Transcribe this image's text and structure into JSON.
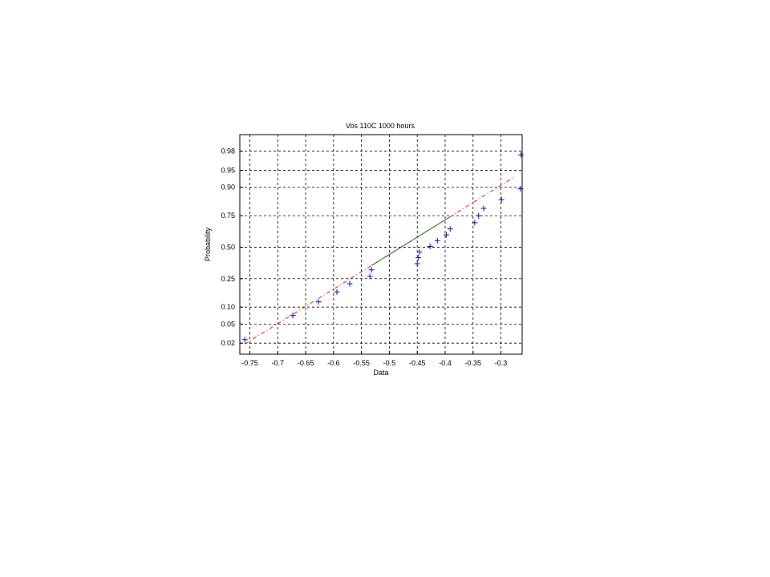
{
  "chart_data": {
    "type": "scatter",
    "title": "Vos 110C 1000 hours",
    "xlabel": "Data",
    "ylabel": "Probability",
    "xlim": [
      -0.768,
      -0.262
    ],
    "y_scale": "normal-probability",
    "ylim_prob": [
      0.011,
      0.992
    ],
    "grid": true,
    "x_ticks": [
      -0.75,
      -0.7,
      -0.65,
      -0.6,
      -0.55,
      -0.5,
      -0.45,
      -0.4,
      -0.35,
      -0.3
    ],
    "x_tick_labels": [
      "-0.75",
      "-0.7",
      "-0.65",
      "-0.6",
      "-0.55",
      "-0.5",
      "-0.45",
      "-0.4",
      "-0.35",
      "-0.3"
    ],
    "y_ticks": [
      0.02,
      0.05,
      0.1,
      0.25,
      0.5,
      0.75,
      0.9,
      0.95,
      0.98
    ],
    "y_tick_labels": [
      "0.02",
      "0.05",
      "0.10",
      "0.25",
      "0.50",
      "0.75",
      "0.90",
      "0.95",
      "0.98"
    ],
    "series": [
      {
        "points": [
          {
            "x": -0.759,
            "y": 0.024
          },
          {
            "x": -0.673,
            "y": 0.072
          },
          {
            "x": -0.627,
            "y": 0.121
          },
          {
            "x": -0.594,
            "y": 0.169
          },
          {
            "x": -0.571,
            "y": 0.217
          },
          {
            "x": -0.535,
            "y": 0.266
          },
          {
            "x": -0.532,
            "y": 0.314
          },
          {
            "x": -0.45,
            "y": 0.362
          },
          {
            "x": -0.448,
            "y": 0.411
          },
          {
            "x": -0.446,
            "y": 0.459
          },
          {
            "x": -0.427,
            "y": 0.507
          },
          {
            "x": -0.414,
            "y": 0.556
          },
          {
            "x": -0.398,
            "y": 0.604
          },
          {
            "x": -0.391,
            "y": 0.652
          },
          {
            "x": -0.347,
            "y": 0.7
          },
          {
            "x": -0.34,
            "y": 0.749
          },
          {
            "x": -0.331,
            "y": 0.797
          },
          {
            "x": -0.299,
            "y": 0.845
          },
          {
            "x": -0.265,
            "y": 0.894
          },
          {
            "x": -0.264,
            "y": 0.976
          }
        ]
      }
    ],
    "fit_line": {
      "solid_range": [
        -0.532,
        -0.391
      ],
      "x_range": [
        -0.759,
        -0.275
      ],
      "mean": -0.479,
      "sd": 0.135
    },
    "colors": {
      "markers": "#1010a0",
      "fit_solid": "#208020",
      "fit_dashed": "#e02020",
      "grid": "#000000"
    }
  }
}
